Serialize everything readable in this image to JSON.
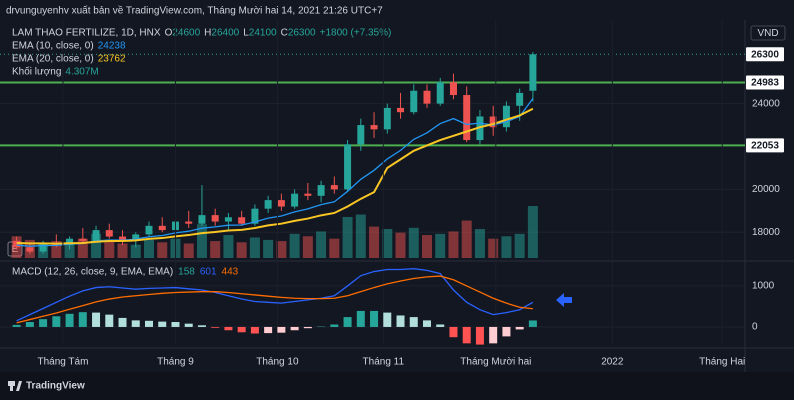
{
  "header": "drvunguyenhv xuất bản về TradingView.com, Tháng Mười hai 14, 2021 21:26 UTC+7",
  "footer": "TradingView",
  "edit_button": "E",
  "chart_data": [
    {
      "type": "candlestick",
      "title": "LAM THAO FERTILIZE, 1D, HNX",
      "currency": "VND",
      "ohlc_letters": [
        "O",
        "H",
        "L",
        "C"
      ],
      "change": "+1800 (+7.35%)",
      "up_color": "#26a69a",
      "down_color": "#ef5350",
      "open": [
        17600,
        17300,
        17100,
        17500,
        17400,
        17700,
        17600,
        18100,
        17800,
        17600,
        17900,
        18300,
        18100,
        18500,
        18400,
        18800,
        18500,
        18700,
        18400,
        19100,
        19500,
        19200,
        19800,
        19700,
        20200,
        20000,
        22100,
        23000,
        22800,
        23800,
        23600,
        24600,
        24000,
        25000,
        24400,
        22300,
        23400,
        22900,
        23900,
        24600
      ],
      "high": [
        17800,
        17500,
        17600,
        17900,
        17800,
        18200,
        18300,
        18400,
        18100,
        18000,
        18500,
        18700,
        18600,
        19000,
        20200,
        19100,
        18900,
        19000,
        19300,
        19700,
        19800,
        20000,
        20300,
        20400,
        20600,
        22300,
        23300,
        23600,
        24000,
        24500,
        24900,
        24900,
        25200,
        25400,
        24800,
        23700,
        23900,
        24100,
        24700,
        26400
      ],
      "low": [
        17200,
        17000,
        17000,
        17300,
        17200,
        17500,
        17500,
        17700,
        17400,
        17300,
        17800,
        18000,
        17900,
        18200,
        18300,
        18300,
        18100,
        18300,
        18300,
        18900,
        19000,
        19100,
        19500,
        19400,
        19800,
        19900,
        21800,
        22400,
        22600,
        23300,
        23500,
        23800,
        23900,
        24200,
        22200,
        22100,
        22500,
        22700,
        23200,
        24100
      ],
      "close": [
        17300,
        17100,
        17500,
        17400,
        17700,
        17600,
        18100,
        17800,
        17600,
        17900,
        18300,
        18100,
        18500,
        18400,
        18800,
        18500,
        18700,
        18400,
        19100,
        19500,
        19200,
        19800,
        19700,
        20200,
        20000,
        22100,
        23000,
        22800,
        23800,
        23600,
        24600,
        24000,
        25000,
        24400,
        22300,
        23400,
        22900,
        23900,
        24500,
        26300
      ],
      "volume": {
        "name": "Khối lượng",
        "value_label": "4.307M",
        "values": [
          1.8,
          1.5,
          1.2,
          1.4,
          1.3,
          1.6,
          2.0,
          1.4,
          1.2,
          1.1,
          1.5,
          1.3,
          1.6,
          1.2,
          2.8,
          1.4,
          1.9,
          1.3,
          1.7,
          1.5,
          1.4,
          2.0,
          1.8,
          2.2,
          1.6,
          3.4,
          3.6,
          2.6,
          2.4,
          2.1,
          2.5,
          1.9,
          2.0,
          2.2,
          3.1,
          2.4,
          1.6,
          1.8,
          2.0,
          4.307
        ]
      },
      "series": [
        {
          "name": "EMA (10, close, 0)",
          "color": "#2196f3",
          "values": [
            17400,
            17350,
            17380,
            17390,
            17450,
            17480,
            17600,
            17640,
            17630,
            17680,
            17790,
            17850,
            17970,
            18050,
            18190,
            18250,
            18330,
            18340,
            18480,
            18660,
            18760,
            18950,
            19090,
            19290,
            19420,
            19910,
            20470,
            20890,
            21420,
            21820,
            22330,
            22640,
            23070,
            23300,
            23030,
            23090,
            23000,
            23160,
            23400,
            24238
          ]
        },
        {
          "name": "EMA (20, close, 0)",
          "color": "#f9c623",
          "values": [
            17500,
            17480,
            17480,
            17470,
            17490,
            17500,
            17560,
            17590,
            17590,
            17620,
            17690,
            17730,
            17810,
            17870,
            17960,
            18010,
            18080,
            18110,
            18200,
            18320,
            18400,
            18530,
            18640,
            18790,
            18900,
            19200,
            19560,
            19870,
            21000,
            21400,
            21800,
            22050,
            22300,
            22500,
            22700,
            22900,
            23050,
            23250,
            23450,
            23762
          ]
        }
      ],
      "hlines": [
        {
          "value": 24983,
          "color": "#4caf50"
        },
        {
          "value": 22053,
          "color": "#4caf50"
        }
      ],
      "xlim": [
        -0.5,
        55.4
      ],
      "ylim": [
        16800,
        27900
      ],
      "yticks": [
        18000,
        20000,
        24000
      ]
    },
    {
      "type": "macd",
      "title": "MACD (12, 26, close, 9, EMA, EMA)",
      "histogram": {
        "values": [
          50,
          120,
          190,
          260,
          320,
          360,
          350,
          300,
          220,
          160,
          150,
          130,
          120,
          80,
          40,
          -20,
          -80,
          -130,
          -160,
          -150,
          -140,
          -80,
          -30,
          10,
          60,
          240,
          390,
          390,
          350,
          280,
          240,
          160,
          60,
          -250,
          -400,
          -430,
          -400,
          -230,
          -60,
          158
        ],
        "colors": {
          "up_strong": "#26a69a",
          "up_weak": "#b2dfdb",
          "down_strong": "#ff5252",
          "down_weak": "#ffcdd2"
        }
      },
      "series": [
        {
          "name": "MACD",
          "color": "#2962ff",
          "values": [
            150,
            300,
            450,
            600,
            750,
            880,
            960,
            980,
            950,
            920,
            940,
            950,
            960,
            930,
            900,
            840,
            760,
            680,
            620,
            600,
            580,
            620,
            660,
            700,
            760,
            1000,
            1250,
            1350,
            1400,
            1400,
            1420,
            1380,
            1300,
            900,
            600,
            420,
            300,
            350,
            420,
            601
          ]
        },
        {
          "name": "Signal",
          "color": "#ff6d00",
          "values": [
            100,
            180,
            260,
            340,
            430,
            520,
            610,
            680,
            730,
            760,
            790,
            820,
            840,
            850,
            860,
            860,
            840,
            810,
            780,
            750,
            720,
            700,
            690,
            690,
            700,
            760,
            860,
            960,
            1050,
            1120,
            1180,
            1220,
            1240,
            1150,
            1000,
            850,
            700,
            580,
            480,
            443
          ]
        }
      ],
      "xlim": [
        -0.5,
        55.4
      ],
      "ylim": [
        -440,
        1510
      ],
      "yticks": [
        0,
        1000
      ],
      "xticks": [
        {
          "value": 3.5,
          "label": "Tháng Tám"
        },
        {
          "value": 12,
          "label": "Tháng 9"
        },
        {
          "value": 19.7,
          "label": "Tháng 10"
        },
        {
          "value": 27.7,
          "label": "Tháng 11"
        },
        {
          "value": 36.2,
          "label": "Tháng Mười hai"
        },
        {
          "value": 45,
          "label": "2022"
        },
        {
          "value": 53.3,
          "label": "Tháng Hai"
        }
      ]
    }
  ]
}
